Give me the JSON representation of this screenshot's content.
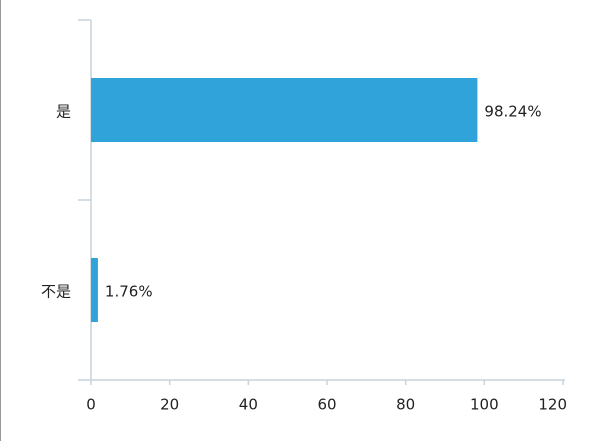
{
  "chart_data": {
    "type": "bar",
    "orientation": "horizontal",
    "categories": [
      "是",
      "不是"
    ],
    "values": [
      98.24,
      1.76
    ],
    "value_labels": [
      "98.24%",
      "1.76%"
    ],
    "color": "#2fa3da",
    "xlim": [
      0,
      120
    ],
    "xticks": [
      0,
      20,
      40,
      60,
      80,
      100,
      120
    ]
  }
}
